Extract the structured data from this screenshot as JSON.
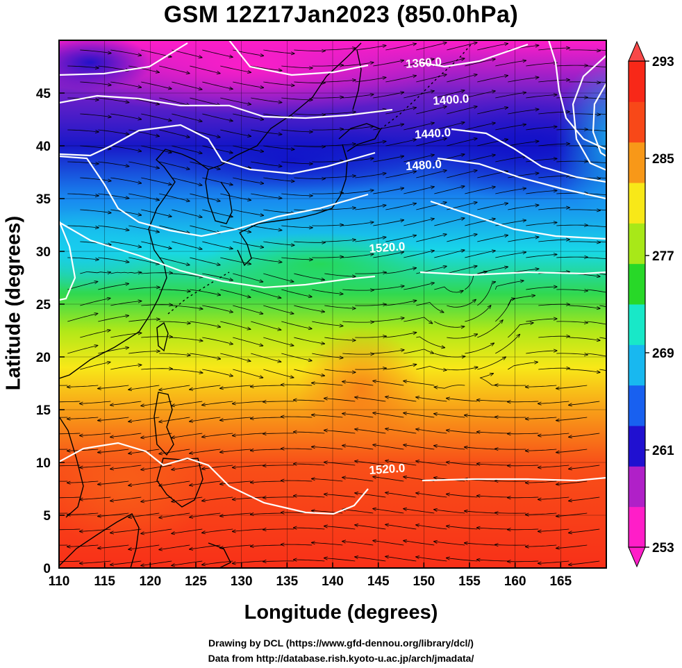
{
  "title": "GSM 12Z17Jan2023 (850.0hPa)",
  "x_axis": {
    "label": "Longitude (degrees)",
    "range": [
      110,
      170
    ],
    "ticks": [
      "110",
      "115",
      "120",
      "125",
      "130",
      "135",
      "140",
      "145",
      "150",
      "155",
      "160",
      "165"
    ]
  },
  "y_axis": {
    "label": "Latitude  (degrees)",
    "range": [
      0,
      50
    ],
    "ticks": [
      "0",
      "5",
      "10",
      "15",
      "20",
      "25",
      "30",
      "35",
      "40",
      "45"
    ]
  },
  "colorbar": {
    "min": 253,
    "max": 293,
    "labels": [
      "293",
      "285",
      "277",
      "269",
      "261",
      "253"
    ],
    "colors": [
      "#ff1ec8",
      "#b020c8",
      "#2010d0",
      "#1860f0",
      "#18b8f0",
      "#18e8c8",
      "#28d828",
      "#a8e818",
      "#f8e818",
      "#f89818",
      "#f84818",
      "#f82818"
    ]
  },
  "contours": {
    "labels": [
      {
        "text": "1360.0",
        "lon": 150,
        "lat": 47.5
      },
      {
        "text": "1400.0",
        "lon": 153,
        "lat": 44
      },
      {
        "text": "1440.0",
        "lon": 151,
        "lat": 40.8
      },
      {
        "text": "1480.0",
        "lon": 150,
        "lat": 37.8
      },
      {
        "text": "1520.0",
        "lon": 146,
        "lat": 30
      },
      {
        "text": "1520.0",
        "lon": 146,
        "lat": 9
      }
    ]
  },
  "credits": {
    "line1": "Drawing by DCL (https://www.gfd-dennou.org/library/dcl/)",
    "line2": "Data from http://database.rish.kyoto-u.ac.jp/arch/jmadata/"
  }
}
